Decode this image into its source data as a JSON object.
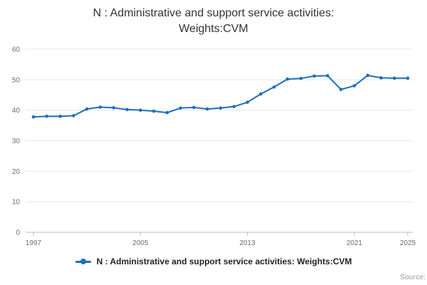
{
  "header": {
    "title": "N : Administrative and support service activities: Weights:CVM"
  },
  "legend": {
    "label": "N : Administrative and support service activities: Weights:CVM"
  },
  "footer": {
    "source": "Source:"
  },
  "chart_data": {
    "type": "line",
    "title": "N : Administrative and support service activities: Weights:CVM",
    "x": [
      1997,
      1998,
      1999,
      2000,
      2001,
      2002,
      2003,
      2004,
      2005,
      2006,
      2007,
      2008,
      2009,
      2010,
      2011,
      2012,
      2013,
      2014,
      2015,
      2016,
      2017,
      2018,
      2019,
      2020,
      2021,
      2022,
      2023,
      2024,
      2025
    ],
    "values": [
      37.8,
      38.0,
      38.0,
      38.2,
      40.4,
      41.0,
      40.8,
      40.2,
      40.0,
      39.7,
      39.2,
      40.7,
      40.9,
      40.4,
      40.7,
      41.2,
      42.6,
      45.3,
      47.6,
      50.2,
      50.4,
      51.2,
      51.3,
      46.8,
      48.0,
      51.4,
      50.6,
      50.5,
      50.5
    ],
    "xlabel": "",
    "ylabel": "",
    "ylim": [
      0,
      60
    ],
    "yticks": [
      0,
      10,
      20,
      30,
      40,
      50,
      60
    ],
    "xticks": [
      1997,
      2005,
      2013,
      2021,
      2025
    ],
    "grid": "horizontal",
    "legend_position": "bottom",
    "colors": {
      "line": "#1d70b8",
      "grid": "#e6e6e6",
      "axis": "#bdbdbd",
      "tick_text": "#6e6e6e"
    }
  }
}
